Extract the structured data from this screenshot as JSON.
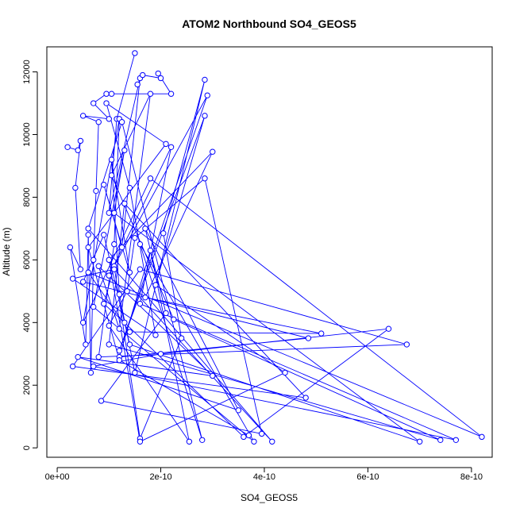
{
  "chart_data": {
    "type": "line",
    "title": "ATOM2 Northbound SO4_GEOS5",
    "xlabel": "SO4_GEOS5",
    "ylabel": "Altitude (m)",
    "xlim": [
      -2e-11,
      8.4e-10
    ],
    "ylim": [
      -300,
      12800
    ],
    "x_ticks": [
      0,
      2e-10,
      4e-10,
      6e-10,
      8e-10
    ],
    "x_tick_labels": [
      "0e+00",
      "2e-10",
      "4e-10",
      "6e-10",
      "8e-10"
    ],
    "y_ticks": [
      0,
      2000,
      4000,
      6000,
      8000,
      10000,
      12000
    ],
    "y_tick_labels": [
      "0",
      "2000",
      "4000",
      "6000",
      "8000",
      "10000",
      "12000"
    ],
    "grid": false,
    "series_color": "#0000ff",
    "series": [
      {
        "marker": "open-circle",
        "points": [
          [
            1.5e-10,
            12600
          ],
          [
            1.15e-10,
            10500
          ],
          [
            1e-10,
            7500
          ],
          [
            1.6e-10,
            11800
          ],
          [
            1.25e-10,
            6400
          ],
          [
            9e-11,
            8400
          ],
          [
            1.4e-10,
            5600
          ],
          [
            1.05e-10,
            9200
          ],
          [
            1.2e-10,
            4900
          ],
          [
            1.5e-10,
            2400
          ],
          [
            2.85e-10,
            11750
          ],
          [
            2.05e-10,
            6850
          ],
          [
            2.4e-10,
            3500
          ],
          [
            1.6e-10,
            300
          ],
          [
            1.1e-10,
            5800
          ],
          [
            9e-11,
            4600
          ],
          [
            1.3e-10,
            4000
          ],
          [
            3.6e-10,
            350
          ],
          [
            6.4e-10,
            3800
          ],
          [
            2e-10,
            3000
          ],
          [
            7e-11,
            2600
          ],
          [
            7.7e-10,
            250
          ],
          [
            1.6e-10,
            4600
          ],
          [
            2.2e-10,
            9600
          ],
          [
            1e-10,
            5500
          ],
          [
            2.9e-10,
            11250
          ],
          [
            1.2e-10,
            3100
          ],
          [
            2.85e-10,
            10600
          ],
          [
            1.9e-10,
            5200
          ],
          [
            4.4e-10,
            2400
          ],
          [
            1.6e-10,
            200
          ],
          [
            1e-10,
            6000
          ],
          [
            3e-10,
            9450
          ],
          [
            1.7e-10,
            4800
          ],
          [
            5.1e-10,
            3650
          ],
          [
            1.4e-10,
            3700
          ],
          [
            6e-11,
            5600
          ],
          [
            8.2e-10,
            350
          ],
          [
            1.8e-10,
            8600
          ],
          [
            5e-11,
            4000
          ],
          [
            1.2e-10,
            10500
          ],
          [
            1.1e-10,
            6500
          ],
          [
            8e-11,
            2900
          ],
          [
            6.75e-10,
            3300
          ],
          [
            1.6e-10,
            5700
          ],
          [
            3e-11,
            2600
          ],
          [
            4.8e-10,
            1600
          ],
          [
            1.3e-10,
            7800
          ],
          [
            1e-10,
            3300
          ],
          [
            7.4e-10,
            250
          ],
          [
            2.25e-10,
            4100
          ],
          [
            1.05e-10,
            8700
          ],
          [
            1.8e-10,
            11300
          ],
          [
            1.2e-10,
            3800
          ],
          [
            8e-11,
            5800
          ],
          [
            3e-10,
            2300
          ],
          [
            4e-11,
            2900
          ],
          [
            3.5e-10,
            1200
          ],
          [
            1.7e-10,
            7000
          ],
          [
            2.1e-10,
            4300
          ],
          [
            8.5e-11,
            1500
          ],
          [
            3.95e-10,
            450
          ],
          [
            2.85e-10,
            8600
          ],
          [
            1.5e-10,
            6700
          ],
          [
            1.35e-10,
            5000
          ],
          [
            1e-10,
            3900
          ],
          [
            2.55e-10,
            200
          ],
          [
            1.8e-10,
            6300
          ],
          [
            1.2e-10,
            2900
          ],
          [
            4.85e-10,
            3500
          ],
          [
            5e-11,
            5300
          ],
          [
            9e-11,
            6800
          ],
          [
            1.4e-10,
            3300
          ],
          [
            7e-10,
            200
          ],
          [
            1.1e-10,
            7500
          ],
          [
            1.3e-10,
            9500
          ],
          [
            7e-11,
            4500
          ],
          [
            3.8e-10,
            200
          ],
          [
            1.6e-10,
            6500
          ],
          [
            2.8e-10,
            250
          ],
          [
            1.25e-10,
            10400
          ],
          [
            6e-11,
            7000
          ],
          [
            4.15e-10,
            200
          ],
          [
            1.1e-10,
            5700
          ],
          [
            3e-11,
            5400
          ],
          [
            1.9e-10,
            3600
          ],
          [
            1.4e-10,
            8300
          ],
          [
            9.5e-11,
            11000
          ],
          [
            2.1e-10,
            9700
          ],
          [
            6e-11,
            6400
          ],
          [
            1.2e-10,
            2800
          ],
          [
            3.7e-10,
            400
          ]
        ]
      },
      {
        "marker": "open-circle",
        "points": [
          [
            2e-11,
            9600
          ],
          [
            4e-11,
            9500
          ],
          [
            4.5e-11,
            9800
          ],
          [
            3.5e-11,
            8300
          ],
          [
            4.5e-11,
            5700
          ],
          [
            2.5e-11,
            6400
          ],
          [
            5.5e-11,
            3300
          ],
          [
            6e-11,
            6800
          ],
          [
            6.5e-11,
            2400
          ],
          [
            7e-11,
            6000
          ],
          [
            7.5e-11,
            8200
          ],
          [
            8e-11,
            10400
          ],
          [
            5e-11,
            10600
          ],
          [
            1e-10,
            10500
          ],
          [
            7e-11,
            11000
          ],
          [
            9.5e-11,
            11300
          ],
          [
            1.05e-10,
            11300
          ],
          [
            2.2e-10,
            11300
          ],
          [
            1.95e-10,
            11950
          ],
          [
            2e-10,
            11800
          ],
          [
            1.65e-10,
            11900
          ],
          [
            1.55e-10,
            11600
          ]
        ]
      }
    ]
  }
}
